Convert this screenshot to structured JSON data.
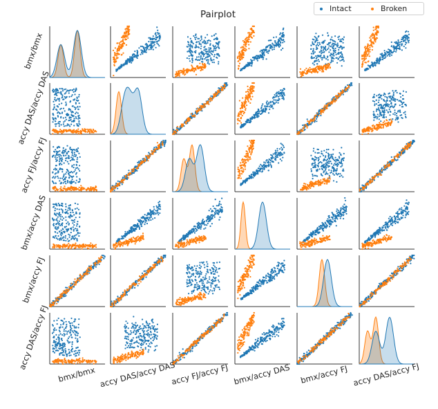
{
  "chart_data": {
    "type": "scatter",
    "title": "Pairplot",
    "variables": [
      "bmx/bmx",
      "accy DAS/accy DAS",
      "accy FJ/accy FJ",
      "bmx/accy DAS",
      "bmx/accy FJ",
      "accy DAS/accy FJ"
    ],
    "hue": [
      "Intact",
      "Broken"
    ],
    "legend": {
      "placement": "top-right",
      "entries": [
        "Intact",
        "Broken"
      ]
    },
    "diagonal_type": "kde",
    "offdiagonal_type": "scatter",
    "grid": false,
    "colors": {
      "Intact": "#1f77b4",
      "Broken": "#ff7f0e"
    },
    "kde_peaks": [
      {
        "variable": "bmx/bmx",
        "Intact": [
          0.2,
          0.5
        ],
        "Broken": [
          0.2,
          0.5
        ]
      },
      {
        "variable": "accy DAS/accy DAS",
        "Intact": [
          0.25,
          0.35,
          0.5
        ],
        "Broken": [
          0.15
        ]
      },
      {
        "variable": "accy FJ/accy FJ",
        "Intact": [
          0.3,
          0.5
        ],
        "Broken": [
          0.2,
          0.35
        ]
      },
      {
        "variable": "bmx/accy DAS",
        "Intact": [
          0.5
        ],
        "Broken": [
          0.15
        ]
      },
      {
        "variable": "bmx/accy FJ",
        "Intact": [
          0.55
        ],
        "Broken": [
          0.45
        ]
      },
      {
        "variable": "accy DAS/accy FJ",
        "Intact": [
          0.3,
          0.55
        ],
        "Broken": [
          0.15,
          0.3
        ]
      }
    ]
  },
  "legend": {
    "intact": "Intact",
    "broken": "Broken"
  },
  "title": "Pairplot"
}
